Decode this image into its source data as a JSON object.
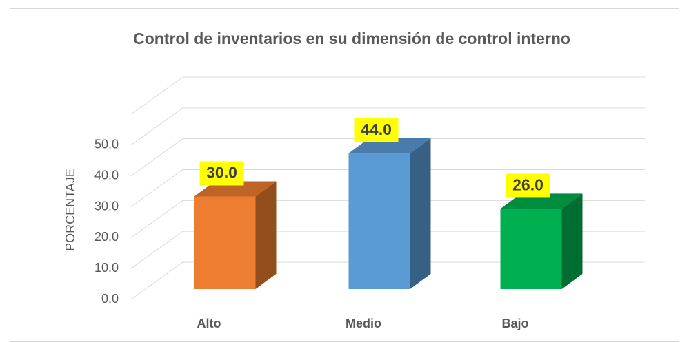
{
  "chart_data": {
    "type": "bar3d",
    "title": "Control de inventarios en su dimensión de control interno",
    "ylabel": "PORCENTAJE",
    "categories": [
      "Alto",
      "Medio",
      "Bajo"
    ],
    "values": [
      30,
      44,
      26
    ],
    "value_labels": [
      "30.0",
      "44.0",
      "26.0"
    ],
    "colors": [
      "#ed7d31",
      "#5b9bd5",
      "#00b050"
    ],
    "ylim": [
      0,
      60
    ],
    "yticks": [
      {
        "value": 0,
        "label": "0.0"
      },
      {
        "value": 10,
        "label": "10.0"
      },
      {
        "value": 20,
        "label": "20.0"
      },
      {
        "value": 30,
        "label": "30.0"
      },
      {
        "value": 40,
        "label": "40.0"
      },
      {
        "value": 50,
        "label": "50.0"
      }
    ],
    "grid": true
  }
}
